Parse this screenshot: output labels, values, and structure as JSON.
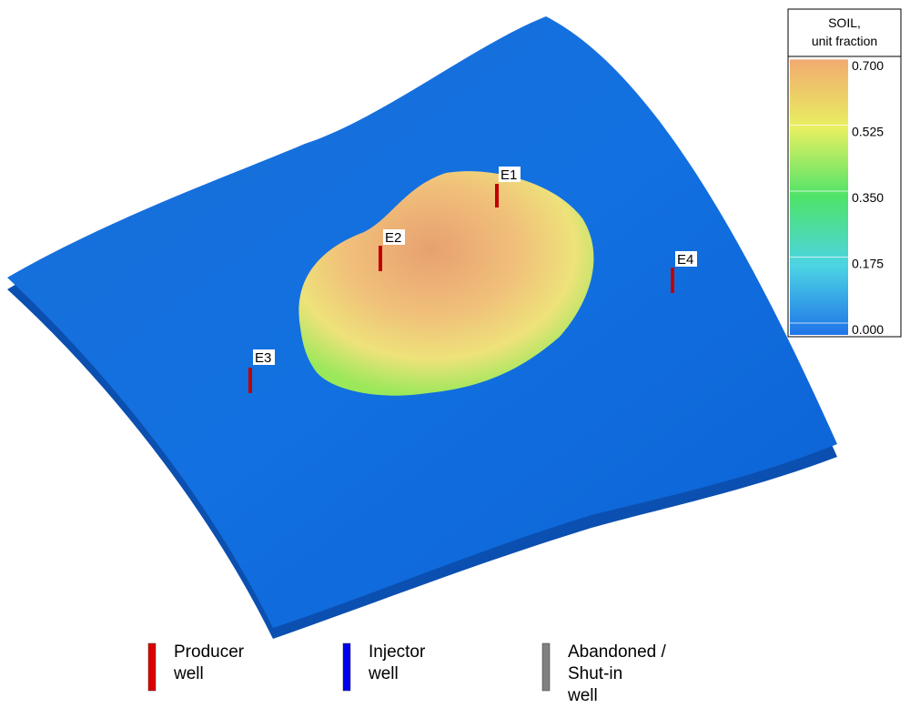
{
  "colorbar": {
    "title": [
      "SOIL,",
      "unit fraction"
    ],
    "ticks": [
      {
        "value": 0.7,
        "label": "0.700"
      },
      {
        "value": 0.525,
        "label": "0.525"
      },
      {
        "value": 0.35,
        "label": "0.350"
      },
      {
        "value": 0.175,
        "label": "0.175"
      },
      {
        "value": 0,
        "label": "0.000"
      }
    ]
  },
  "wells": [
    {
      "label": "E1"
    },
    {
      "label": "E2"
    },
    {
      "label": "E3"
    },
    {
      "label": "E4"
    }
  ],
  "legend": [
    {
      "lines": [
        "Producer",
        "well"
      ]
    },
    {
      "lines": [
        "Injector",
        "well"
      ]
    },
    {
      "lines": [
        "Abandoned /",
        "Shut-in",
        "well"
      ]
    }
  ]
}
